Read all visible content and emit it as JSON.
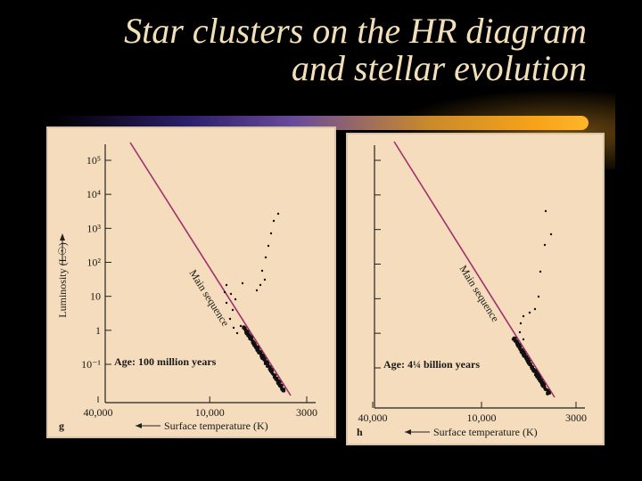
{
  "slide": {
    "title_line1": "Star clusters on the HR diagram",
    "title_line2": "and stellar evolution"
  },
  "chart_data": [
    {
      "type": "scatter",
      "panel_label": "g",
      "ylabel": "Luminosity (L☉)",
      "xlabel": "Surface temperature (K)",
      "xscale": "log-reversed",
      "yscale": "log",
      "xlim": [
        40000,
        3000
      ],
      "ylim": [
        0.1,
        100000
      ],
      "y_tick_labels": [
        "10⁻¹",
        "1",
        "10",
        "10²",
        "10³",
        "10⁴",
        "10⁵"
      ],
      "x_tick_labels": [
        "40,000",
        "10,000",
        "3000"
      ],
      "annotation": "Age: 100 million years",
      "main_sequence_label": "Main sequence"
    },
    {
      "type": "scatter",
      "panel_label": "h",
      "ylabel": "",
      "xlabel": "Surface temperature (K)",
      "xscale": "log-reversed",
      "yscale": "log",
      "xlim": [
        40000,
        3000
      ],
      "ylim": [
        0.1,
        100000
      ],
      "y_tick_labels": [],
      "x_tick_labels": [
        "40,000",
        "10,000",
        "3000"
      ],
      "annotation": "Age: 4¼ billion years",
      "main_sequence_label": "Main sequence"
    }
  ]
}
